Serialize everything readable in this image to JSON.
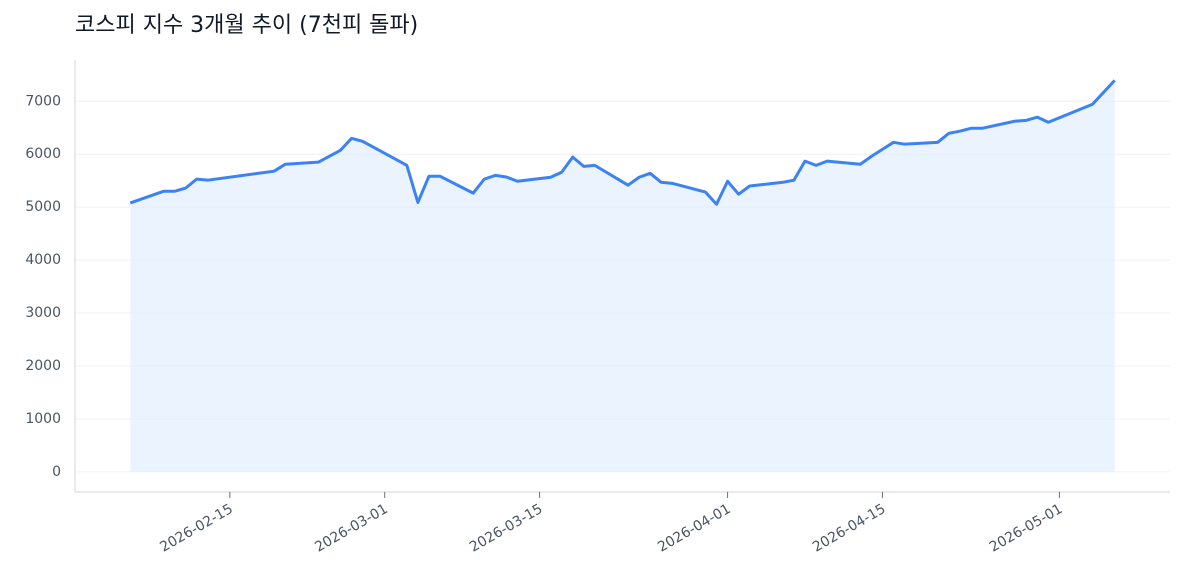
{
  "chart_data": {
    "type": "line",
    "title": "코스피 지수 3개월 추이 (7천피 돌파)",
    "x": [
      "2026-02-06",
      "2026-02-09",
      "2026-02-10",
      "2026-02-11",
      "2026-02-12",
      "2026-02-13",
      "2026-02-19",
      "2026-02-20",
      "2026-02-23",
      "2026-02-25",
      "2026-02-26",
      "2026-02-27",
      "2026-03-03",
      "2026-03-04",
      "2026-03-05",
      "2026-03-06",
      "2026-03-09",
      "2026-03-10",
      "2026-03-11",
      "2026-03-12",
      "2026-03-13",
      "2026-03-16",
      "2026-03-17",
      "2026-03-18",
      "2026-03-19",
      "2026-03-20",
      "2026-03-23",
      "2026-03-24",
      "2026-03-25",
      "2026-03-26",
      "2026-03-27",
      "2026-03-30",
      "2026-03-31",
      "2026-04-01",
      "2026-04-02",
      "2026-04-03",
      "2026-04-06",
      "2026-04-07",
      "2026-04-08",
      "2026-04-09",
      "2026-04-10",
      "2026-04-13",
      "2026-04-14",
      "2026-04-16",
      "2026-04-17",
      "2026-04-20",
      "2026-04-21",
      "2026-04-22",
      "2026-04-23",
      "2026-04-24",
      "2026-04-27",
      "2026-04-28",
      "2026-04-29",
      "2026-04-30",
      "2026-05-04",
      "2026-05-06"
    ],
    "series": [
      {
        "color": "#3b82f6",
        "fill": "#dbeafe",
        "values": [
          5080,
          5300,
          5300,
          5360,
          5530,
          5510,
          5680,
          5810,
          5850,
          6075,
          6300,
          6245,
          5790,
          5090,
          5585,
          5585,
          5265,
          5530,
          5600,
          5570,
          5490,
          5565,
          5660,
          5945,
          5770,
          5790,
          5415,
          5565,
          5640,
          5470,
          5450,
          5285,
          5055,
          5490,
          5245,
          5400,
          5470,
          5510,
          5870,
          5790,
          5870,
          5810,
          5960,
          6225,
          6190,
          6225,
          6395,
          6435,
          6490,
          6490,
          6625,
          6640,
          6700,
          6605,
          6945,
          7395
        ]
      }
    ],
    "xlim": [
      "2026-02-01",
      "2026-05-11"
    ],
    "xticks": [
      "2026-02-15",
      "2026-03-01",
      "2026-03-15",
      "2026-04-01",
      "2026-04-15",
      "2026-05-01"
    ],
    "ylim": [
      -380,
      7780
    ],
    "yticks": [
      0,
      1000,
      2000,
      3000,
      4000,
      5000,
      6000,
      7000
    ],
    "grid": true
  }
}
